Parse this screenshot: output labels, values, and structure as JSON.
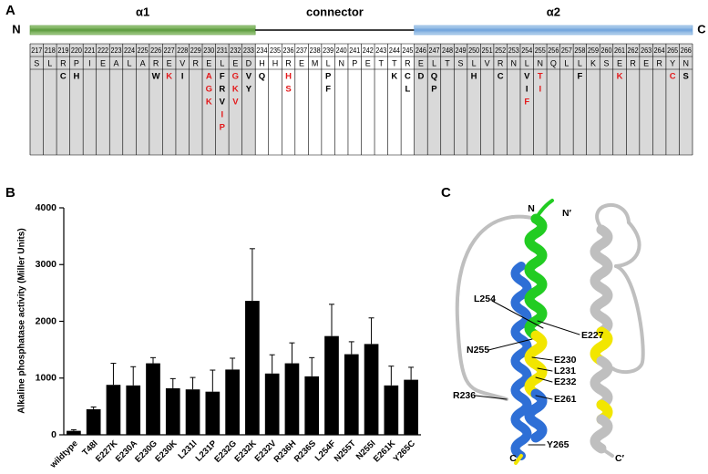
{
  "panel_labels": [
    "A",
    "B",
    "C"
  ],
  "panel_a": {
    "n_term": "N",
    "c_term": "C",
    "segments": [
      {
        "label": "α1",
        "from": 217,
        "to": 233,
        "bar_color": "#5a9a3c",
        "cell_color": "#d9d9d9"
      },
      {
        "label": "connector",
        "from": 234,
        "to": 245,
        "bar_color": "#000000",
        "cell_color": "#ffffff"
      },
      {
        "label": "α2",
        "from": 246,
        "to": 266,
        "bar_color": "#6fa3dc",
        "cell_color": "#d9d9d9"
      }
    ],
    "residues": [
      {
        "number": 217,
        "wt": "S",
        "mutants": []
      },
      {
        "number": 218,
        "wt": "L",
        "mutants": []
      },
      {
        "number": 219,
        "wt": "R",
        "mutants": [
          {
            "aa": "C",
            "color": "#000000"
          }
        ]
      },
      {
        "number": 220,
        "wt": "P",
        "mutants": [
          {
            "aa": "H",
            "color": "#000000"
          }
        ]
      },
      {
        "number": 221,
        "wt": "I",
        "mutants": []
      },
      {
        "number": 222,
        "wt": "E",
        "mutants": []
      },
      {
        "number": 223,
        "wt": "A",
        "mutants": []
      },
      {
        "number": 224,
        "wt": "L",
        "mutants": []
      },
      {
        "number": 225,
        "wt": "A",
        "mutants": []
      },
      {
        "number": 226,
        "wt": "R",
        "mutants": [
          {
            "aa": "W",
            "color": "#000000"
          }
        ]
      },
      {
        "number": 227,
        "wt": "E",
        "mutants": [
          {
            "aa": "K",
            "color": "#e31a1c"
          }
        ]
      },
      {
        "number": 228,
        "wt": "V",
        "mutants": [
          {
            "aa": "I",
            "color": "#000000"
          }
        ]
      },
      {
        "number": 229,
        "wt": "R",
        "mutants": []
      },
      {
        "number": 230,
        "wt": "E",
        "mutants": [
          {
            "aa": "A",
            "color": "#e31a1c"
          },
          {
            "aa": "G",
            "color": "#e31a1c"
          },
          {
            "aa": "K",
            "color": "#e31a1c"
          }
        ]
      },
      {
        "number": 231,
        "wt": "L",
        "mutants": [
          {
            "aa": "F",
            "color": "#000000"
          },
          {
            "aa": "R",
            "color": "#000000"
          },
          {
            "aa": "V",
            "color": "#000000"
          },
          {
            "aa": "I",
            "color": "#e31a1c"
          },
          {
            "aa": "P",
            "color": "#e31a1c"
          }
        ]
      },
      {
        "number": 232,
        "wt": "E",
        "mutants": [
          {
            "aa": "G",
            "color": "#e31a1c"
          },
          {
            "aa": "K",
            "color": "#e31a1c"
          },
          {
            "aa": "V",
            "color": "#e31a1c"
          }
        ]
      },
      {
        "number": 233,
        "wt": "D",
        "mutants": [
          {
            "aa": "V",
            "color": "#000000"
          },
          {
            "aa": "Y",
            "color": "#000000"
          }
        ]
      },
      {
        "number": 234,
        "wt": "H",
        "mutants": [
          {
            "aa": "Q",
            "color": "#000000"
          }
        ]
      },
      {
        "number": 235,
        "wt": "H",
        "mutants": []
      },
      {
        "number": 236,
        "wt": "R",
        "mutants": [
          {
            "aa": "H",
            "color": "#e31a1c"
          },
          {
            "aa": "S",
            "color": "#e31a1c"
          }
        ]
      },
      {
        "number": 237,
        "wt": "E",
        "mutants": []
      },
      {
        "number": 238,
        "wt": "M",
        "mutants": []
      },
      {
        "number": 239,
        "wt": "L",
        "mutants": [
          {
            "aa": "P",
            "color": "#000000"
          },
          {
            "aa": "F",
            "color": "#000000"
          }
        ]
      },
      {
        "number": 240,
        "wt": "N",
        "mutants": []
      },
      {
        "number": 241,
        "wt": "P",
        "mutants": []
      },
      {
        "number": 242,
        "wt": "E",
        "mutants": []
      },
      {
        "number": 243,
        "wt": "T",
        "mutants": []
      },
      {
        "number": 244,
        "wt": "T",
        "mutants": [
          {
            "aa": "K",
            "color": "#000000"
          }
        ]
      },
      {
        "number": 245,
        "wt": "R",
        "mutants": [
          {
            "aa": "C",
            "color": "#000000"
          },
          {
            "aa": "L",
            "color": "#000000"
          }
        ]
      },
      {
        "number": 246,
        "wt": "E",
        "mutants": [
          {
            "aa": "D",
            "color": "#000000"
          }
        ]
      },
      {
        "number": 247,
        "wt": "L",
        "mutants": [
          {
            "aa": "Q",
            "color": "#000000"
          },
          {
            "aa": "P",
            "color": "#000000"
          }
        ]
      },
      {
        "number": 248,
        "wt": "T",
        "mutants": []
      },
      {
        "number": 249,
        "wt": "S",
        "mutants": []
      },
      {
        "number": 250,
        "wt": "L",
        "mutants": [
          {
            "aa": "H",
            "color": "#000000"
          }
        ]
      },
      {
        "number": 251,
        "wt": "V",
        "mutants": []
      },
      {
        "number": 252,
        "wt": "R",
        "mutants": [
          {
            "aa": "C",
            "color": "#000000"
          }
        ]
      },
      {
        "number": 253,
        "wt": "N",
        "mutants": []
      },
      {
        "number": 254,
        "wt": "L",
        "mutants": [
          {
            "aa": "V",
            "color": "#000000"
          },
          {
            "aa": "I",
            "color": "#000000"
          },
          {
            "aa": "F",
            "color": "#e31a1c"
          }
        ]
      },
      {
        "number": 255,
        "wt": "N",
        "mutants": [
          {
            "aa": "T",
            "color": "#e31a1c"
          },
          {
            "aa": "I",
            "color": "#e31a1c"
          }
        ]
      },
      {
        "number": 256,
        "wt": "Q",
        "mutants": []
      },
      {
        "number": 257,
        "wt": "L",
        "mutants": []
      },
      {
        "number": 258,
        "wt": "L",
        "mutants": [
          {
            "aa": "F",
            "color": "#000000"
          }
        ]
      },
      {
        "number": 259,
        "wt": "K",
        "mutants": []
      },
      {
        "number": 260,
        "wt": "S",
        "mutants": []
      },
      {
        "number": 261,
        "wt": "E",
        "mutants": [
          {
            "aa": "K",
            "color": "#e31a1c"
          }
        ]
      },
      {
        "number": 262,
        "wt": "R",
        "mutants": []
      },
      {
        "number": 263,
        "wt": "E",
        "mutants": []
      },
      {
        "number": 264,
        "wt": "R",
        "mutants": []
      },
      {
        "number": 265,
        "wt": "Y",
        "mutants": [
          {
            "aa": "C",
            "color": "#e31a1c"
          }
        ]
      },
      {
        "number": 266,
        "wt": "N",
        "mutants": [
          {
            "aa": "S",
            "color": "#000000"
          }
        ]
      }
    ]
  },
  "chart_data": {
    "type": "bar",
    "y_label": "Alkaline phosphatase activity (Miller Units)",
    "categories": [
      "wildtype",
      "T48I",
      "E227K",
      "E230A",
      "E230G",
      "E230K",
      "L231I",
      "L231P",
      "E232G",
      "E232K",
      "E232V",
      "R236H",
      "R236S",
      "L254F",
      "N255T",
      "N255I",
      "E261K",
      "Y265C"
    ],
    "values": [
      70,
      450,
      880,
      870,
      1260,
      820,
      800,
      760,
      1150,
      2360,
      1080,
      1260,
      1030,
      1740,
      1420,
      1600,
      870,
      970
    ],
    "errors": [
      20,
      40,
      380,
      330,
      100,
      170,
      210,
      380,
      200,
      920,
      330,
      360,
      330,
      560,
      220,
      460,
      340,
      220
    ],
    "color": "#000000",
    "ylim": [
      0,
      4000
    ],
    "yticks": [
      0,
      1000,
      2000,
      3000,
      4000
    ]
  },
  "panel_c": {
    "termini": [
      "N",
      "N′",
      "C",
      "C′"
    ],
    "residues": [
      "L254",
      "E227",
      "N255",
      "E230",
      "L231",
      "E232",
      "R236",
      "E261",
      "Y265"
    ]
  }
}
